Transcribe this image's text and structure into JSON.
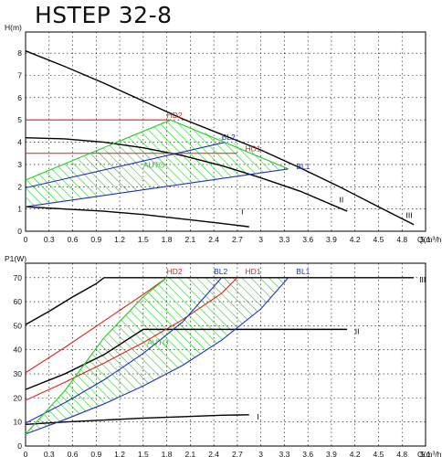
{
  "title": "HSTEP 32-8",
  "colors": {
    "axis": "#000000",
    "grid": "#000000",
    "red": "#e02020",
    "blue": "#2030c0",
    "green": "#22cc22",
    "black": "#000000"
  },
  "chart_data": [
    {
      "type": "line",
      "title": "",
      "ylabel": "H(m)",
      "xlabel": "Q(m³/h)",
      "xlim": [
        0,
        5.0
      ],
      "ylim": [
        0,
        9
      ],
      "xticks": [
        "0",
        "0.3",
        "0.6",
        "0.9",
        "1.2",
        "1.5",
        "1.8",
        "2.1",
        "2.4",
        "2.7",
        "3",
        "3.3",
        "3.6",
        "3.9",
        "4.2",
        "4.5",
        "4.8",
        "5.1"
      ],
      "yticks": [
        "0",
        "1",
        "2",
        "3",
        "4",
        "5",
        "6",
        "7",
        "8"
      ],
      "grid": true,
      "series": [
        {
          "name": "I",
          "color": "black",
          "x": [
            0,
            0.5,
            1.0,
            1.5,
            2.0,
            2.5,
            2.85
          ],
          "y": [
            1.1,
            1.0,
            0.9,
            0.75,
            0.55,
            0.35,
            0.2
          ]
        },
        {
          "name": "II",
          "color": "black",
          "x": [
            0,
            0.5,
            1.0,
            1.5,
            2.0,
            2.5,
            3.0,
            3.5,
            4.1
          ],
          "y": [
            4.2,
            4.15,
            4.0,
            3.75,
            3.4,
            2.95,
            2.4,
            1.8,
            0.9
          ]
        },
        {
          "name": "III",
          "color": "black",
          "x": [
            0,
            0.5,
            1.0,
            1.5,
            2.0,
            2.5,
            3.0,
            3.5,
            4.0,
            4.5,
            4.95
          ],
          "y": [
            8.1,
            7.4,
            6.65,
            5.85,
            5.05,
            4.35,
            3.65,
            2.85,
            2.0,
            1.1,
            0.3
          ]
        },
        {
          "name": "HD2",
          "color": "red",
          "x": [
            0,
            1.85
          ],
          "y": [
            5.0,
            5.0
          ]
        },
        {
          "name": "HD1",
          "color": "red",
          "x": [
            0,
            2.7
          ],
          "y": [
            3.5,
            3.5
          ]
        },
        {
          "name": "BL2",
          "color": "blue",
          "x": [
            0,
            2.55
          ],
          "y": [
            1.95,
            4.0
          ]
        },
        {
          "name": "BL1",
          "color": "blue",
          "x": [
            0,
            3.35
          ],
          "y": [
            1.1,
            2.8
          ]
        },
        {
          "name": "AUTO",
          "color": "green",
          "x": [
            0,
            1.85,
            3.35
          ],
          "y": [
            2.3,
            5.0,
            2.8
          ]
        }
      ],
      "auto_region": {
        "x": [
          0,
          1.85,
          2.2,
          2.7,
          3.0,
          3.35,
          3.0,
          2.0,
          1.0,
          0
        ],
        "y": [
          2.3,
          5.0,
          4.55,
          3.9,
          3.35,
          2.8,
          2.62,
          2.1,
          1.6,
          1.1
        ]
      },
      "labels": [
        {
          "text": "HD2",
          "x": 1.8,
          "y": 5.1,
          "color": "red"
        },
        {
          "text": "BL2",
          "x": 2.5,
          "y": 4.1,
          "color": "blue"
        },
        {
          "text": "HD1",
          "x": 2.8,
          "y": 3.6,
          "color": "red"
        },
        {
          "text": "BL1",
          "x": 3.45,
          "y": 2.8,
          "color": "blue"
        },
        {
          "text": "AUTO",
          "x": 1.5,
          "y": 2.85,
          "color": "green"
        },
        {
          "text": "I",
          "x": 2.75,
          "y": 0.75,
          "color": "black"
        },
        {
          "text": "II",
          "x": 4.0,
          "y": 1.3,
          "color": "black"
        },
        {
          "text": "III",
          "x": 4.85,
          "y": 0.6,
          "color": "black"
        }
      ]
    },
    {
      "type": "line",
      "title": "",
      "ylabel": "P1(W)",
      "xlabel": "Q(m³/h)",
      "xlim": [
        0,
        5.0
      ],
      "ylim": [
        0,
        75
      ],
      "xticks": [
        "0",
        "0.3",
        "0.6",
        "0.9",
        "1.2",
        "1.5",
        "1.8",
        "2.1",
        "2.4",
        "2.7",
        "3",
        "3.3",
        "3.6",
        "3.9",
        "4.2",
        "4.5",
        "4.8",
        "5.1"
      ],
      "yticks": [
        "0",
        "10",
        "20",
        "30",
        "40",
        "50",
        "60",
        "70"
      ],
      "grid": true,
      "series": [
        {
          "name": "I",
          "color": "black",
          "x": [
            0,
            0.5,
            1.0,
            1.5,
            2.0,
            2.5,
            2.85
          ],
          "y": [
            9.0,
            10.0,
            10.8,
            11.6,
            12.2,
            12.8,
            13.0
          ]
        },
        {
          "name": "II",
          "color": "black",
          "x": [
            0,
            0.5,
            1.0,
            1.5,
            4.1
          ],
          "y": [
            23.5,
            30.0,
            38.0,
            48.5,
            48.5
          ]
        },
        {
          "name": "III",
          "color": "black",
          "x": [
            0,
            0.3,
            0.6,
            0.9,
            1.0,
            4.95
          ],
          "y": [
            50.5,
            56.0,
            62.0,
            67.5,
            70.0,
            70.0
          ]
        },
        {
          "name": "HD2",
          "color": "red",
          "x": [
            0,
            0.5,
            1.0,
            1.5,
            1.8
          ],
          "y": [
            30.5,
            41.0,
            52.0,
            63.0,
            70.0
          ]
        },
        {
          "name": "HD1",
          "color": "red",
          "x": [
            0,
            0.5,
            1.0,
            1.5,
            2.0,
            2.5,
            2.7
          ],
          "y": [
            19.0,
            26.5,
            34.5,
            43.0,
            52.5,
            63.5,
            70.0
          ]
        },
        {
          "name": "BL2",
          "color": "blue",
          "x": [
            0,
            0.5,
            1.0,
            1.5,
            2.0,
            2.5
          ],
          "y": [
            9.5,
            18.0,
            27.5,
            38.5,
            51.5,
            70.0
          ]
        },
        {
          "name": "BL1",
          "color": "blue",
          "x": [
            0,
            0.5,
            1.0,
            1.5,
            2.0,
            2.5,
            3.0,
            3.35
          ],
          "y": [
            5.0,
            11.0,
            17.5,
            25.0,
            33.5,
            44.0,
            57.0,
            70.0
          ]
        },
        {
          "name": "AUTO",
          "color": "green",
          "x": [
            0,
            0.5,
            1.0,
            1.5,
            1.8
          ],
          "y": [
            5.0,
            23.0,
            45.0,
            62.0,
            70.0
          ]
        }
      ],
      "auto_region": {
        "x": [
          0,
          0.5,
          1.0,
          1.5,
          1.8,
          2.5,
          3.35,
          3.0,
          2.5,
          2.0,
          1.5,
          1.0,
          0.5,
          0
        ],
        "y": [
          5.0,
          23.0,
          45.0,
          62.0,
          70.0,
          70.0,
          70.0,
          57.0,
          44.0,
          33.5,
          25.0,
          17.5,
          11.0,
          5.0
        ]
      },
      "labels": [
        {
          "text": "HD2",
          "x": 1.8,
          "y": 71.5,
          "color": "red"
        },
        {
          "text": "BL2",
          "x": 2.4,
          "y": 71.5,
          "color": "blue"
        },
        {
          "text": "HD1",
          "x": 2.8,
          "y": 71.5,
          "color": "red"
        },
        {
          "text": "BL1",
          "x": 3.45,
          "y": 71.5,
          "color": "blue"
        },
        {
          "text": "AUTO",
          "x": 1.55,
          "y": 42.0,
          "color": "green"
        },
        {
          "text": "I",
          "x": 2.95,
          "y": 11.0,
          "color": "black"
        },
        {
          "text": "II",
          "x": 4.2,
          "y": 46.5,
          "color": "black"
        },
        {
          "text": "III",
          "x": 5.02,
          "y": 68.0,
          "color": "black"
        }
      ]
    }
  ]
}
